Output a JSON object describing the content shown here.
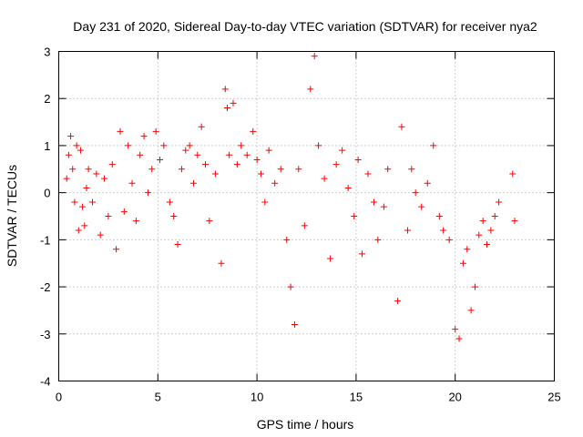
{
  "chart_data": {
    "type": "scatter",
    "title": "Day 231 of 2020, Sidereal Day-to-day VTEC variation (SDTVAR) for receiver nya2",
    "xlabel": "GPS time / hours",
    "ylabel": "SDTVAR / TECUs",
    "xlim": [
      0,
      25
    ],
    "ylim": [
      -4,
      3
    ],
    "xticks": [
      0,
      5,
      10,
      15,
      20,
      25
    ],
    "yticks": [
      -4,
      -3,
      -2,
      -1,
      0,
      1,
      2,
      3
    ],
    "grid": true,
    "marker": "+",
    "color": "#ff0000",
    "series": [
      {
        "name": "nya2",
        "x": [
          0.4,
          0.5,
          0.6,
          0.7,
          0.8,
          0.9,
          1.0,
          1.1,
          1.2,
          1.3,
          1.4,
          1.5,
          1.7,
          1.9,
          2.1,
          2.3,
          2.5,
          2.7,
          2.9,
          3.1,
          3.3,
          3.5,
          3.7,
          3.9,
          4.1,
          4.3,
          4.5,
          4.7,
          4.9,
          5.1,
          5.3,
          5.6,
          5.8,
          6.0,
          6.2,
          6.4,
          6.6,
          6.8,
          7.0,
          7.2,
          7.4,
          7.6,
          7.9,
          8.2,
          8.4,
          8.5,
          8.6,
          8.8,
          9.0,
          9.2,
          9.5,
          9.8,
          10.0,
          10.2,
          10.4,
          10.6,
          10.9,
          11.2,
          11.5,
          11.7,
          11.9,
          12.1,
          12.4,
          12.7,
          12.9,
          13.1,
          13.4,
          13.7,
          14.0,
          14.3,
          14.6,
          14.9,
          15.1,
          15.3,
          15.6,
          15.9,
          16.1,
          16.4,
          16.6,
          17.1,
          17.3,
          17.6,
          17.8,
          18.0,
          18.3,
          18.6,
          18.9,
          19.2,
          19.4,
          19.7,
          20.0,
          20.2,
          20.4,
          20.6,
          20.8,
          21.0,
          21.2,
          21.4,
          21.6,
          21.8,
          22.0,
          22.2,
          22.9,
          23.0
        ],
        "y": [
          0.3,
          0.8,
          1.2,
          0.5,
          -0.2,
          1.0,
          -0.8,
          0.9,
          -0.3,
          -0.7,
          0.1,
          0.5,
          -0.2,
          0.4,
          -0.9,
          0.3,
          -0.5,
          0.6,
          -1.2,
          1.3,
          -0.4,
          1.0,
          0.2,
          -0.6,
          0.8,
          1.2,
          0.0,
          0.5,
          1.3,
          0.7,
          1.0,
          -0.2,
          -0.5,
          -1.1,
          0.5,
          0.9,
          1.0,
          0.2,
          0.8,
          1.4,
          0.6,
          -0.6,
          0.4,
          -1.5,
          2.2,
          1.8,
          0.8,
          1.9,
          0.6,
          1.0,
          0.8,
          1.3,
          0.7,
          0.4,
          -0.2,
          0.9,
          0.2,
          0.5,
          -1.0,
          -2.0,
          -2.8,
          0.5,
          -0.7,
          2.2,
          2.9,
          1.0,
          0.3,
          -1.4,
          0.6,
          0.9,
          0.1,
          -0.5,
          0.7,
          -1.3,
          0.4,
          -0.2,
          -1.0,
          -0.3,
          0.5,
          -2.3,
          1.4,
          -0.8,
          0.5,
          0.0,
          -0.3,
          0.2,
          1.0,
          -0.5,
          -0.8,
          -1.0,
          -2.9,
          -3.1,
          -1.5,
          -1.2,
          -2.5,
          -2.0,
          -0.9,
          -0.6,
          -1.1,
          -0.8,
          -0.5,
          -0.2,
          0.4,
          -0.6
        ]
      }
    ]
  }
}
